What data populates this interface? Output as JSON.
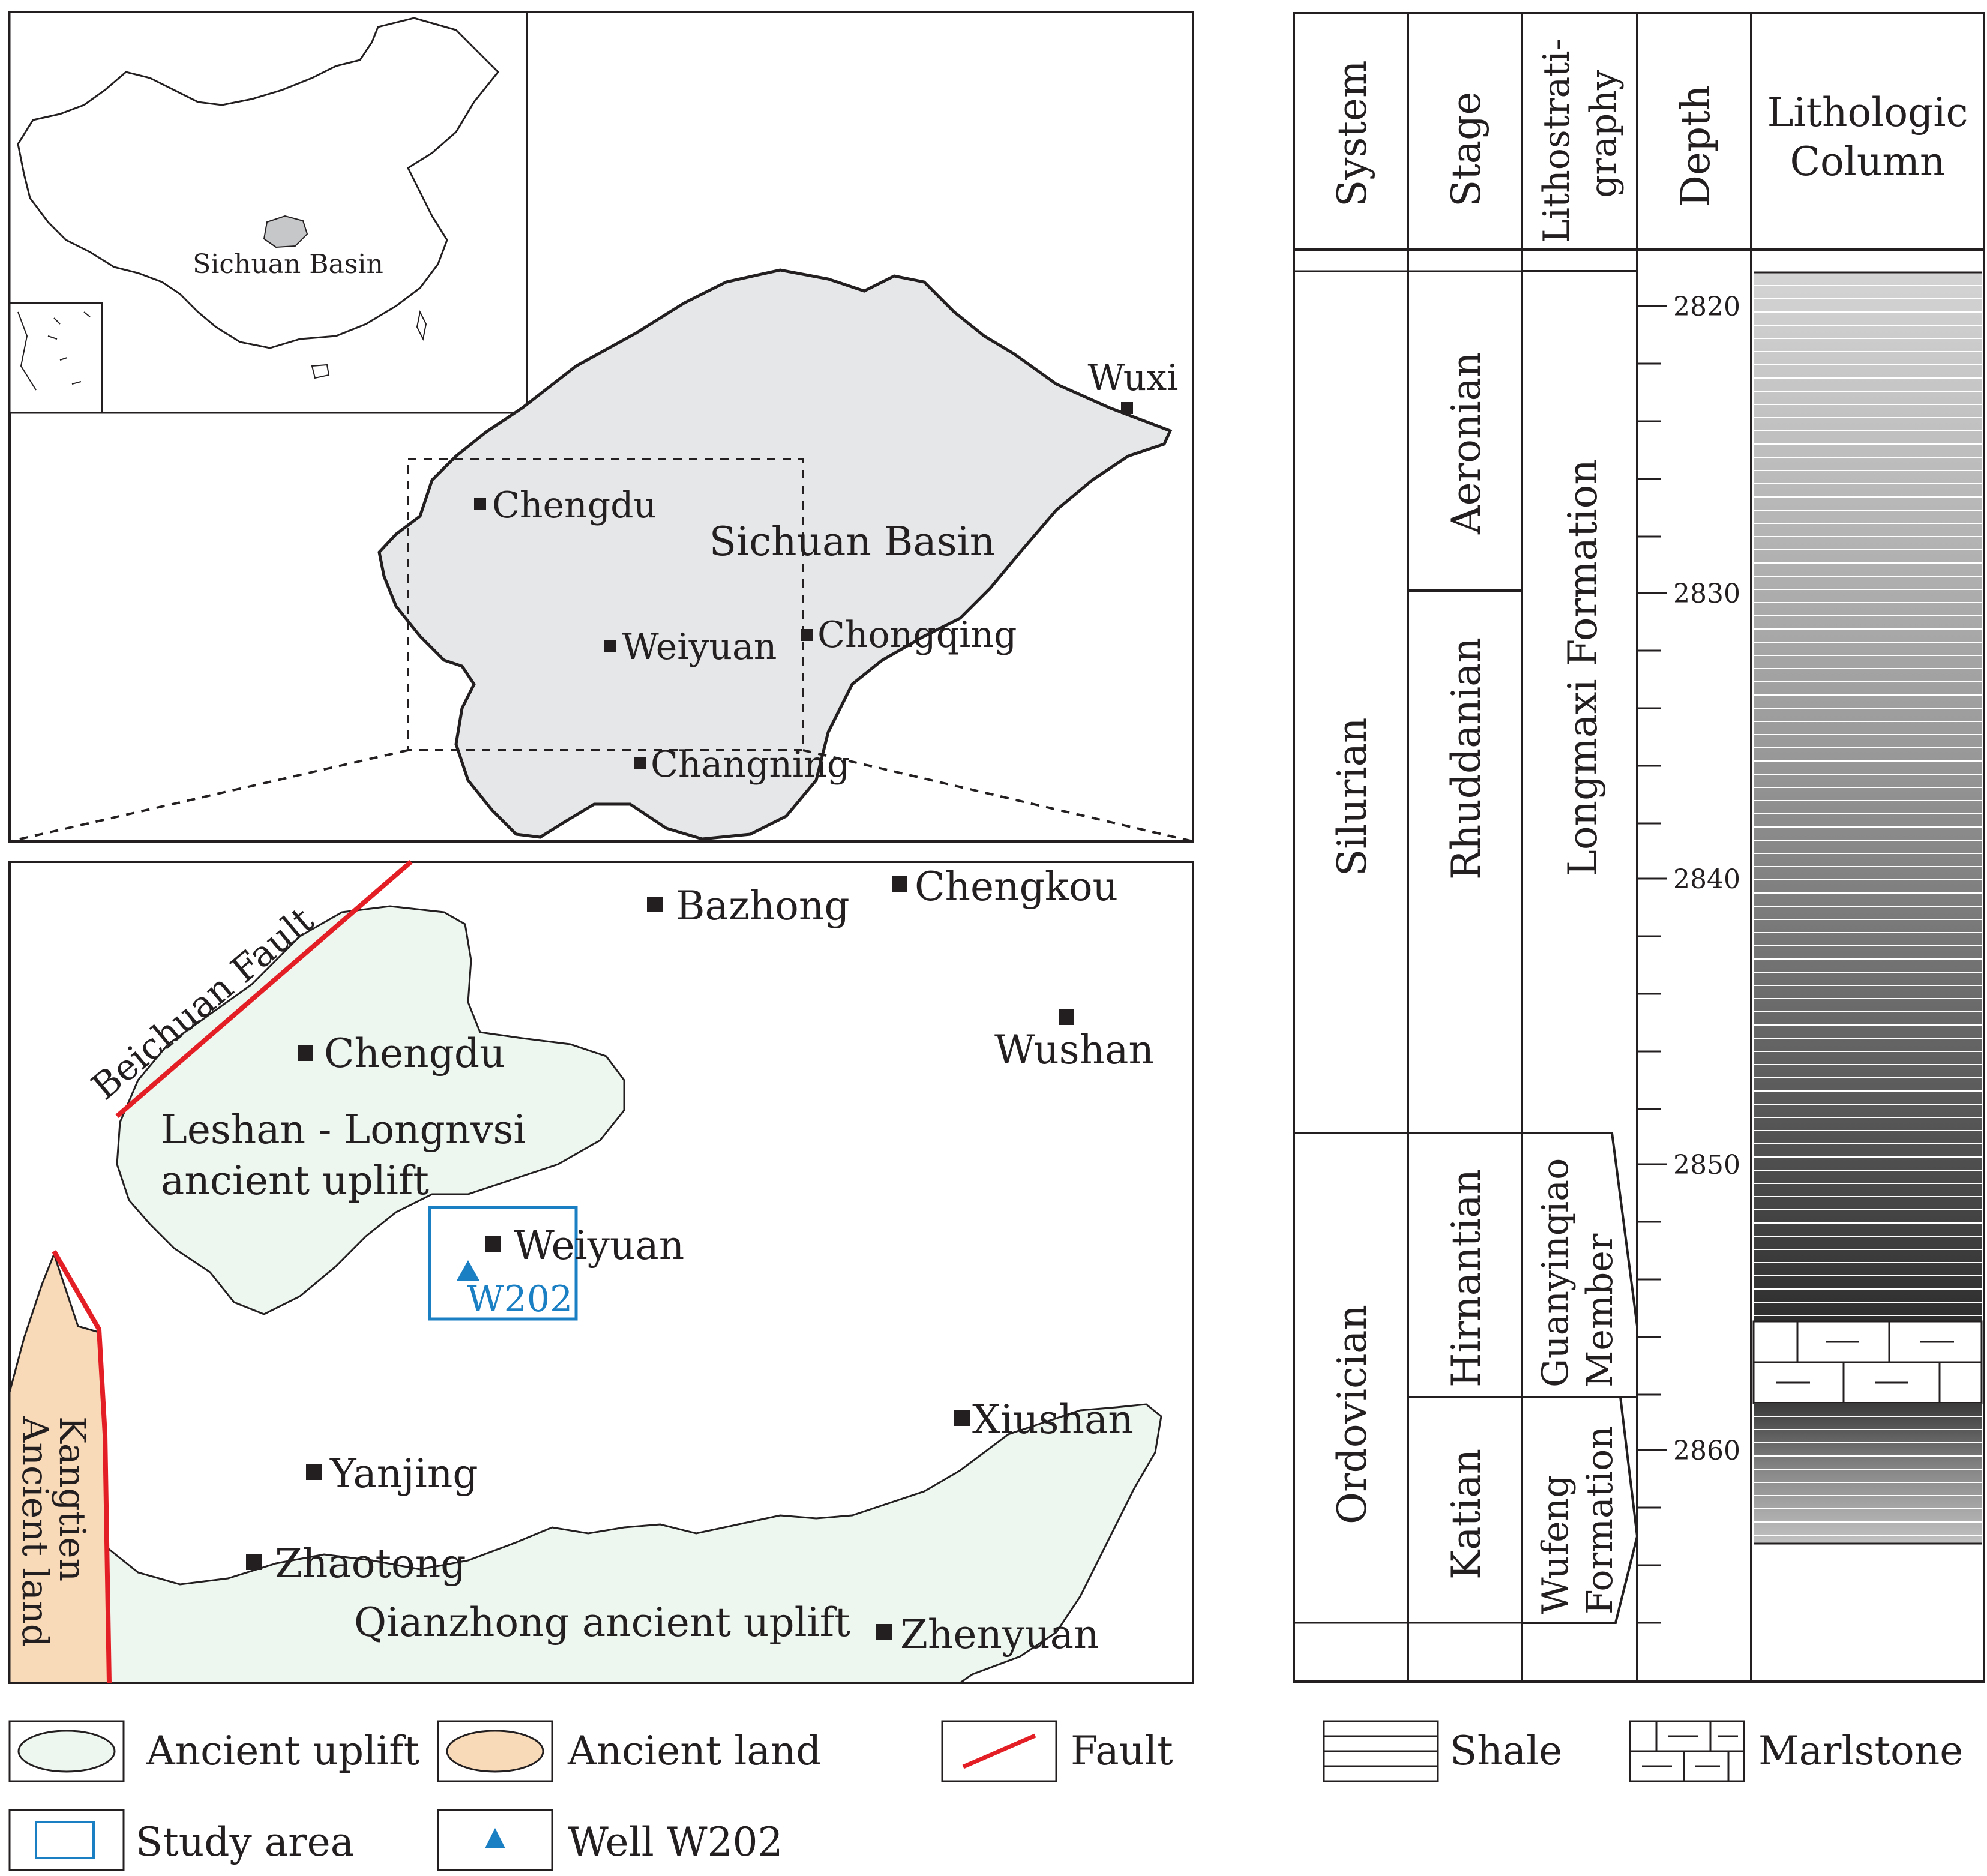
{
  "inset_map": {
    "basin_label": "Sichuan Basin"
  },
  "basin_map": {
    "title": "Sichuan Basin",
    "cities": {
      "wuxi": "Wuxi",
      "chengdu": "Chengdu",
      "weiyuan": "Weiyuan",
      "chongqing": "Chongqing",
      "changning": "Changning"
    }
  },
  "study_map": {
    "fault": "Beichuan Fault",
    "uplift_1_line1": "Leshan - Longnvsi",
    "uplift_1_line2": "ancient uplift",
    "uplift_2": "Qianzhong ancient uplift",
    "land_line1": "Kangtien",
    "land_line2": "Ancient land",
    "well": "W202",
    "cities": {
      "bazhong": "Bazhong",
      "chengkou": "Chengkou",
      "wushan": "Wushan",
      "chengdu": "Chengdu",
      "weiyuan": "Weiyuan",
      "xiushan": "Xiushan",
      "yanjing": "Yanjing",
      "zhaotong": "Zhaotong",
      "zhenyuan": "Zhenyuan"
    }
  },
  "strat_column": {
    "headers": {
      "system": "System",
      "stage": "Stage",
      "litho_line1": "Lithostrati-",
      "litho_line2": "graphy",
      "depth": "Depth",
      "col_line1": "Lithologic",
      "col_line2": "Column"
    },
    "systems": [
      "Silurian",
      "Ordovician"
    ],
    "stages": [
      "Aeronian",
      "Rhuddanian",
      "Hirnantian",
      "Katian"
    ],
    "formation": "Longmaxi Formation",
    "member": [
      "Guanyinqiao",
      "Member"
    ],
    "wufeng": [
      "Wufeng",
      "Formation"
    ],
    "depth_labels": [
      "2820",
      "2830",
      "2840",
      "2850",
      "2860"
    ]
  },
  "legend": {
    "ancient_uplift": "Ancient uplift",
    "ancient_land": "Ancient land",
    "fault": "Fault",
    "study_area": "Study area",
    "well": "Well W202",
    "shale": "Shale",
    "marlstone": "Marlstone"
  },
  "colors": {
    "basin_fill": "#e6e7e8",
    "uplift_fill": "#eef6f0",
    "land_fill": "#f8d9b8",
    "fault": "#e41e25",
    "study_blue": "#1b7fc4"
  }
}
